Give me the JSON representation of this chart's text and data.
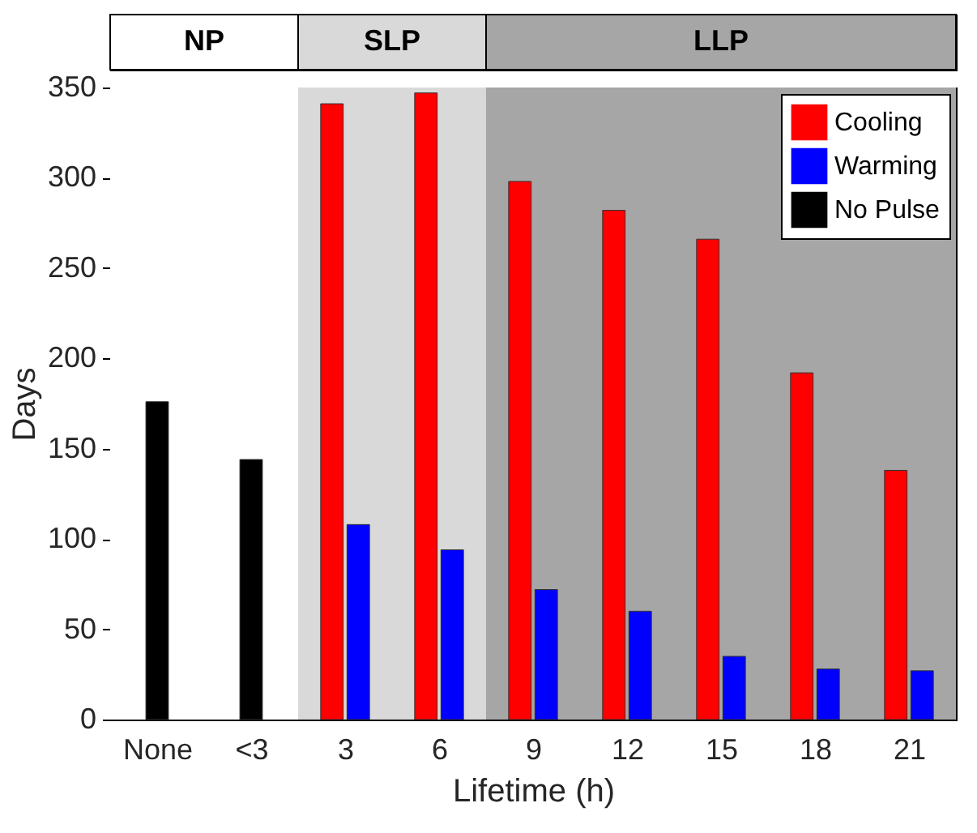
{
  "chart_data": {
    "type": "bar",
    "xlabel": "Lifetime (h)",
    "ylabel": "Days",
    "categories": [
      "None",
      "<3",
      "3",
      "6",
      "9",
      "12",
      "15",
      "18",
      "21"
    ],
    "series": [
      {
        "name": "Cooling",
        "color": "#ff0000",
        "values": [
          null,
          null,
          341,
          347,
          298,
          282,
          266,
          192,
          138
        ]
      },
      {
        "name": "Warming",
        "color": "#0000ff",
        "values": [
          null,
          null,
          108,
          94,
          72,
          60,
          35,
          28,
          27
        ]
      },
      {
        "name": "No Pulse",
        "color": "#000000",
        "values": [
          176,
          144,
          null,
          null,
          null,
          null,
          null,
          null,
          null
        ]
      }
    ],
    "ylim": [
      0,
      350
    ],
    "yticks": [
      0,
      50,
      100,
      150,
      200,
      250,
      300,
      350
    ],
    "bands": [
      {
        "axis": "x",
        "from": "None",
        "to": "<3",
        "label": "NP",
        "color": "#ffffff"
      },
      {
        "axis": "x",
        "from": "3",
        "to": "6",
        "label": "SLP",
        "color": "#d9d9d9"
      },
      {
        "axis": "x",
        "from": "9",
        "to": "21",
        "label": "LLP",
        "color": "#a6a6a6"
      }
    ],
    "legend": "top right",
    "grid": false
  }
}
